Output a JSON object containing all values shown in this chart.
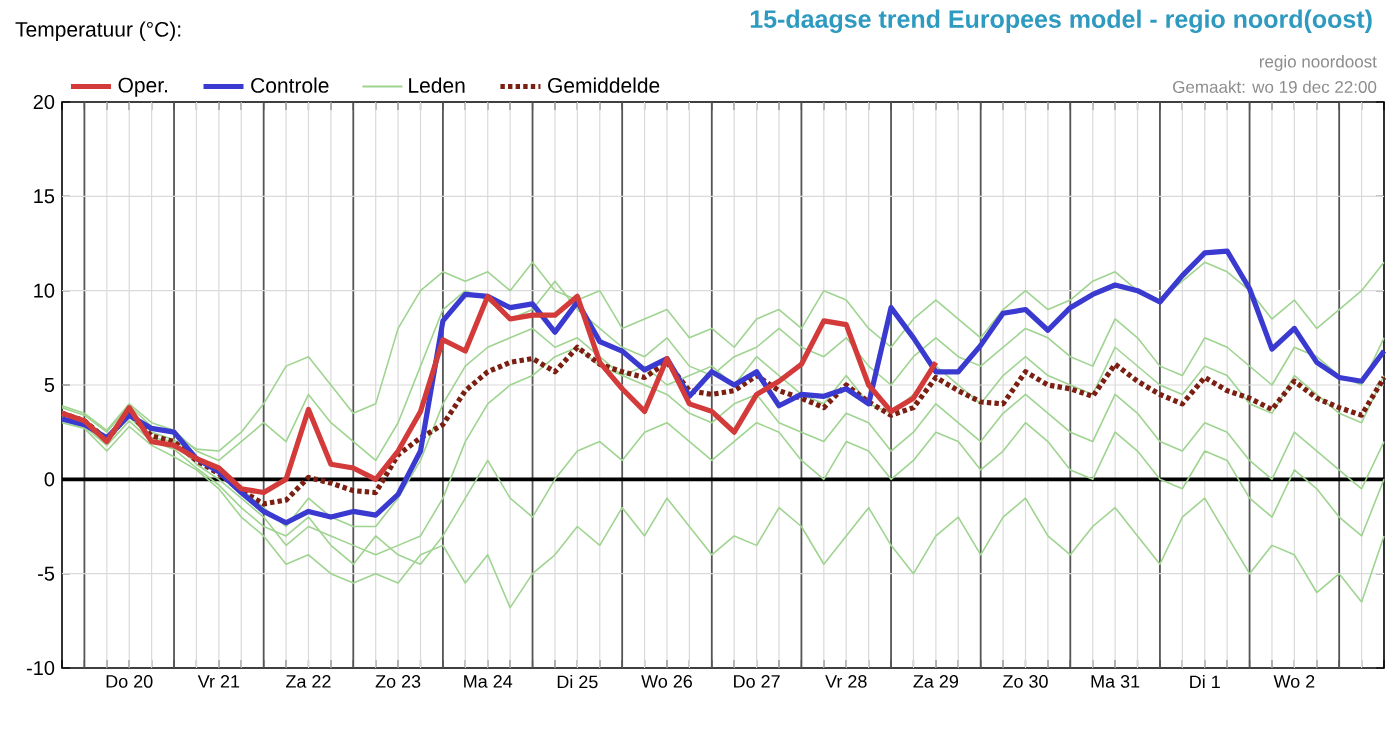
{
  "chart_data": {
    "type": "line",
    "title": "15-daagse trend Europees model - regio noord(oost)",
    "ylabel": "Temperatuur (°C):",
    "annotations": [
      "regio noordoost",
      "Gemaakt: wo 19 dec 22:00"
    ],
    "categories": [
      null,
      null,
      null,
      "Do 20",
      null,
      null,
      null,
      "Vr 21",
      null,
      null,
      null,
      "Za 22",
      null,
      null,
      null,
      "Zo 23",
      null,
      null,
      null,
      "Ma 24",
      null,
      null,
      null,
      "Di 25",
      null,
      null,
      null,
      "Wo 26",
      null,
      null,
      null,
      "Do 27",
      null,
      null,
      null,
      "Vr 28",
      null,
      null,
      null,
      "Za 29",
      null,
      null,
      null,
      "Zo 30",
      null,
      null,
      null,
      "Ma 31",
      null,
      null,
      null,
      "Di 1",
      null,
      null,
      null,
      "Wo 2",
      null,
      null,
      null,
      null
    ],
    "ylim": [
      -10,
      20
    ],
    "yticks": [
      -10,
      -5,
      0,
      5,
      10,
      15,
      20
    ],
    "grid": true,
    "legend": "top left",
    "ref_lines": [
      {
        "axis": "y",
        "value": 0,
        "color": "#000000"
      }
    ],
    "series": [
      {
        "name": "Oper.",
        "color": "#d33a3a",
        "values": [
          3.5,
          3.1,
          2.0,
          3.8,
          2.0,
          1.8,
          1.1,
          0.6,
          -0.5,
          -0.7,
          0,
          3.7,
          0.8,
          0.6,
          0,
          1.5,
          3.6,
          7.4,
          6.8,
          9.7,
          8.5,
          8.7,
          8.7,
          9.7,
          6.2,
          4.8,
          3.6,
          6.4,
          4.0,
          3.6,
          2.5,
          4.5,
          5.2,
          6.1,
          8.4,
          8.2,
          5.0,
          3.6,
          4.3,
          6.2,
          null,
          null,
          null,
          null,
          null,
          null,
          null,
          null,
          null,
          null,
          null,
          null,
          null,
          null,
          null,
          null,
          null,
          null,
          null,
          null
        ]
      },
      {
        "name": "Controle",
        "color": "#3a3ad0",
        "values": [
          3.2,
          2.9,
          2.2,
          3.4,
          2.7,
          2.5,
          1.1,
          0.4,
          -0.7,
          -1.7,
          -2.3,
          -1.7,
          -2.0,
          -1.7,
          -1.9,
          -0.8,
          1.5,
          8.4,
          9.8,
          9.7,
          9.1,
          9.3,
          7.8,
          9.4,
          7.3,
          6.8,
          5.8,
          6.4,
          4.4,
          5.7,
          5.0,
          5.7,
          3.9,
          4.5,
          4.4,
          4.8,
          4.0,
          9.1,
          7.5,
          5.7,
          5.7,
          7.1,
          8.8,
          9.0,
          7.9,
          9.1,
          9.8,
          10.3,
          10.0,
          9.4,
          10.8,
          12.0,
          12.1,
          10.1,
          6.9,
          8.0,
          6.2,
          5.4,
          5.2,
          6.8
        ]
      },
      {
        "name": "Leden",
        "color": "#9fd490",
        "values": [
          3.8,
          3.4,
          2.5,
          3.9,
          2.8,
          2.4,
          1.6,
          1.5,
          2.5,
          4.0,
          6.0,
          6.5,
          5.0,
          3.5,
          4.0,
          8.0,
          10.0,
          11.0,
          10.5,
          11.0,
          10.0,
          11.5,
          10.0,
          9.5,
          10.0,
          8.0,
          8.5,
          9.0,
          7.5,
          8.0,
          7.0,
          8.5,
          9.0,
          8.0,
          10.0,
          9.5,
          8.0,
          7.0,
          8.5,
          9.5,
          8.5,
          7.5,
          9.0,
          10.0,
          9.0,
          9.5,
          10.5,
          11.0,
          10.0,
          9.5,
          10.5,
          11.5,
          11.0,
          10.0,
          8.5,
          9.5,
          8.0,
          9.0,
          10.0,
          11.5
        ]
      },
      {
        "color": "#9fd490",
        "values": [
          3.0,
          2.7,
          1.5,
          2.8,
          1.8,
          1.2,
          0.5,
          -0.5,
          -2.0,
          -3.0,
          -4.5,
          -4.0,
          -5.0,
          -5.5,
          -5.0,
          -5.5,
          -4.0,
          -3.5,
          -5.5,
          -4.0,
          -6.8,
          -5.0,
          -4.0,
          -2.5,
          -3.5,
          -1.5,
          -3.0,
          -1.0,
          -2.5,
          -4.0,
          -3.0,
          -3.5,
          -1.5,
          -2.5,
          -4.5,
          -3.0,
          -1.5,
          -3.5,
          -5.0,
          -3.0,
          -2.0,
          -4.0,
          -2.0,
          -1.0,
          -3.0,
          -4.0,
          -2.5,
          -1.5,
          -3.0,
          -4.5,
          -2.0,
          -1.0,
          -3.0,
          -5.0,
          -3.5,
          -4.0,
          -6.0,
          -5.0,
          -6.5,
          -3.0
        ]
      },
      {
        "color": "#9fd490",
        "values": [
          3.6,
          3.2,
          2.2,
          3.6,
          2.5,
          2.1,
          1.2,
          0.5,
          -0.5,
          -1.5,
          -2.5,
          -1.0,
          -2.0,
          -2.5,
          -2.5,
          -1.0,
          1.0,
          4.0,
          6.0,
          7.0,
          7.5,
          8.0,
          7.0,
          7.5,
          6.5,
          5.5,
          6.0,
          5.0,
          5.5,
          6.0,
          5.0,
          6.5,
          5.5,
          4.5,
          4.0,
          5.5,
          4.0,
          3.5,
          4.5,
          6.0,
          5.0,
          4.0,
          5.5,
          6.5,
          5.5,
          5.0,
          4.5,
          7.0,
          6.0,
          5.0,
          4.5,
          6.0,
          5.5,
          4.0,
          3.5,
          5.5,
          4.5,
          3.5,
          3.0,
          5.5
        ]
      },
      {
        "color": "#9fd490",
        "values": [
          3.3,
          3.0,
          2.0,
          3.3,
          2.2,
          2.0,
          0.8,
          0.0,
          -1.0,
          -2.0,
          -3.5,
          -2.5,
          -3.0,
          -3.5,
          -4.0,
          -3.5,
          -3.0,
          -1.0,
          2.0,
          4.0,
          5.0,
          5.5,
          6.5,
          7.0,
          6.0,
          5.5,
          5.0,
          4.5,
          3.5,
          3.0,
          4.0,
          4.5,
          3.0,
          2.5,
          2.0,
          3.5,
          3.0,
          1.5,
          2.5,
          4.0,
          3.0,
          2.0,
          3.5,
          4.5,
          3.5,
          2.5,
          2.0,
          4.5,
          3.5,
          2.0,
          1.5,
          3.0,
          2.5,
          1.0,
          0.0,
          2.5,
          1.5,
          0.5,
          -0.5,
          2.0
        ]
      },
      {
        "color": "#9fd490",
        "values": [
          3.9,
          3.5,
          2.6,
          4.0,
          3.0,
          2.6,
          1.5,
          1.0,
          2.0,
          3.0,
          2.0,
          4.5,
          3.0,
          2.0,
          1.0,
          3.0,
          6.0,
          9.0,
          10.0,
          9.5,
          8.5,
          9.0,
          10.5,
          9.0,
          8.0,
          7.0,
          6.5,
          7.5,
          6.0,
          5.5,
          6.5,
          7.0,
          8.0,
          7.0,
          6.5,
          7.5,
          6.0,
          5.0,
          6.5,
          7.5,
          6.5,
          6.0,
          7.0,
          8.0,
          7.5,
          6.5,
          6.0,
          8.5,
          7.5,
          6.0,
          5.5,
          7.5,
          7.0,
          6.0,
          5.0,
          7.0,
          6.5,
          5.5,
          5.0,
          7.5
        ]
      },
      {
        "color": "#9fd490",
        "values": [
          3.1,
          2.8,
          1.8,
          3.1,
          2.0,
          1.6,
          0.6,
          -0.3,
          -1.5,
          -2.5,
          -3.0,
          -2.0,
          -3.5,
          -4.5,
          -3.0,
          -4.0,
          -4.5,
          -3.0,
          -1.0,
          1.0,
          -1.0,
          -2.0,
          0.0,
          1.5,
          2.0,
          1.0,
          2.5,
          3.0,
          2.0,
          1.0,
          2.0,
          3.0,
          2.5,
          1.0,
          0.0,
          2.0,
          1.5,
          0.0,
          1.0,
          2.5,
          2.0,
          0.5,
          1.5,
          3.0,
          2.0,
          0.5,
          0.0,
          2.5,
          1.5,
          0.0,
          -0.5,
          1.5,
          1.0,
          -1.0,
          -2.0,
          0.5,
          -0.5,
          -2.0,
          -3.0,
          0.0
        ]
      },
      {
        "name": "Gemiddelde",
        "color": "#7a1f12",
        "line_style": "dotted",
        "values": [
          3.5,
          3.1,
          2.1,
          3.5,
          2.3,
          2.0,
          1.0,
          0.3,
          -0.6,
          -1.3,
          -1.1,
          0.1,
          -0.2,
          -0.6,
          -0.7,
          1.3,
          2.2,
          2.9,
          4.7,
          5.7,
          6.2,
          6.4,
          5.7,
          7.0,
          6.1,
          5.7,
          5.4,
          6.2,
          4.7,
          4.5,
          4.7,
          5.5,
          4.7,
          4.3,
          3.8,
          5.0,
          4.1,
          3.4,
          3.8,
          5.4,
          4.7,
          4.1,
          4.0,
          5.7,
          5.0,
          4.8,
          4.4,
          6.1,
          5.2,
          4.5,
          4.0,
          5.4,
          4.7,
          4.3,
          3.7,
          5.2,
          4.3,
          3.8,
          3.4,
          5.4
        ]
      }
    ]
  }
}
